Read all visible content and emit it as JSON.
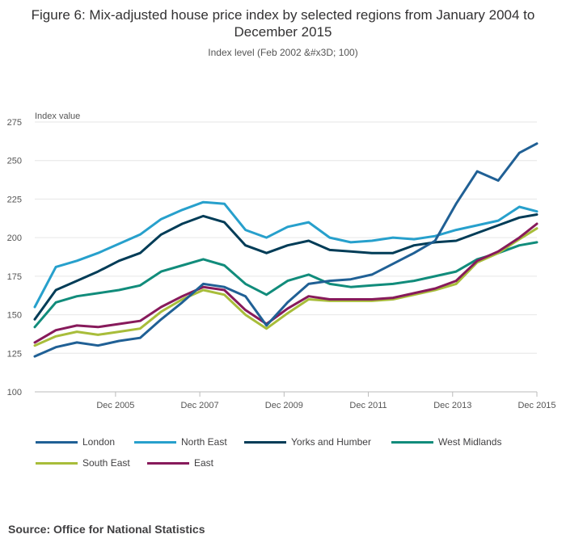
{
  "chart_data": {
    "type": "line",
    "title": "Figure 6: Mix-adjusted house price index by selected regions from January 2004 to December 2015",
    "subtitle": "Index level (Feb 2002 &#x3D; 100)",
    "ylabel": "Index value",
    "xlabel": "",
    "ylim": [
      100,
      275
    ],
    "yticks": [
      100,
      125,
      150,
      175,
      200,
      225,
      250,
      275
    ],
    "xlim": [
      "Jan 2004",
      "Dec 2015"
    ],
    "xticks": [
      {
        "label": "Dec 2005",
        "month_index": 23
      },
      {
        "label": "Dec 2007",
        "month_index": 47
      },
      {
        "label": "Dec 2009",
        "month_index": 71
      },
      {
        "label": "Dec 2011",
        "month_index": 95
      },
      {
        "label": "Dec 2013",
        "month_index": 119
      },
      {
        "label": "Dec 2015",
        "month_index": 143
      }
    ],
    "grid": true,
    "legend_position": "bottom",
    "x_month_index": [
      0,
      6,
      12,
      18,
      24,
      30,
      36,
      42,
      48,
      54,
      60,
      66,
      72,
      78,
      84,
      90,
      96,
      102,
      108,
      114,
      120,
      126,
      132,
      138,
      143
    ],
    "series": [
      {
        "name": "London",
        "color": "#206095",
        "values": [
          123,
          129,
          132,
          130,
          133,
          135,
          147,
          158,
          170,
          168,
          162,
          143,
          158,
          170,
          172,
          173,
          176,
          183,
          190,
          198,
          222,
          243,
          237,
          255,
          261
        ]
      },
      {
        "name": "North East",
        "color": "#27a0cc",
        "values": [
          155,
          181,
          185,
          190,
          196,
          202,
          212,
          218,
          223,
          222,
          205,
          200,
          207,
          210,
          200,
          197,
          198,
          200,
          199,
          201,
          205,
          208,
          211,
          220,
          217
        ]
      },
      {
        "name": "Yorks and Humber",
        "color": "#003c57",
        "values": [
          147,
          166,
          172,
          178,
          185,
          190,
          202,
          209,
          214,
          210,
          195,
          190,
          195,
          198,
          192,
          191,
          190,
          190,
          195,
          197,
          198,
          203,
          208,
          213,
          215
        ]
      },
      {
        "name": "West Midlands",
        "color": "#118c7b",
        "values": [
          142,
          158,
          162,
          164,
          166,
          169,
          178,
          182,
          186,
          182,
          170,
          163,
          172,
          176,
          170,
          168,
          169,
          170,
          172,
          175,
          178,
          186,
          190,
          195,
          197
        ]
      },
      {
        "name": "South East",
        "color": "#a8bd3a",
        "values": [
          130,
          136,
          139,
          137,
          139,
          141,
          152,
          160,
          166,
          163,
          150,
          141,
          151,
          160,
          159,
          159,
          159,
          160,
          163,
          166,
          170,
          184,
          190,
          199,
          206
        ]
      },
      {
        "name": "East",
        "color": "#871a5b",
        "values": [
          132,
          140,
          143,
          142,
          144,
          146,
          155,
          162,
          168,
          166,
          153,
          144,
          154,
          162,
          160,
          160,
          160,
          161,
          164,
          167,
          172,
          185,
          191,
          200,
          209
        ]
      }
    ]
  },
  "source_text": "Source: Office for National Statistics"
}
